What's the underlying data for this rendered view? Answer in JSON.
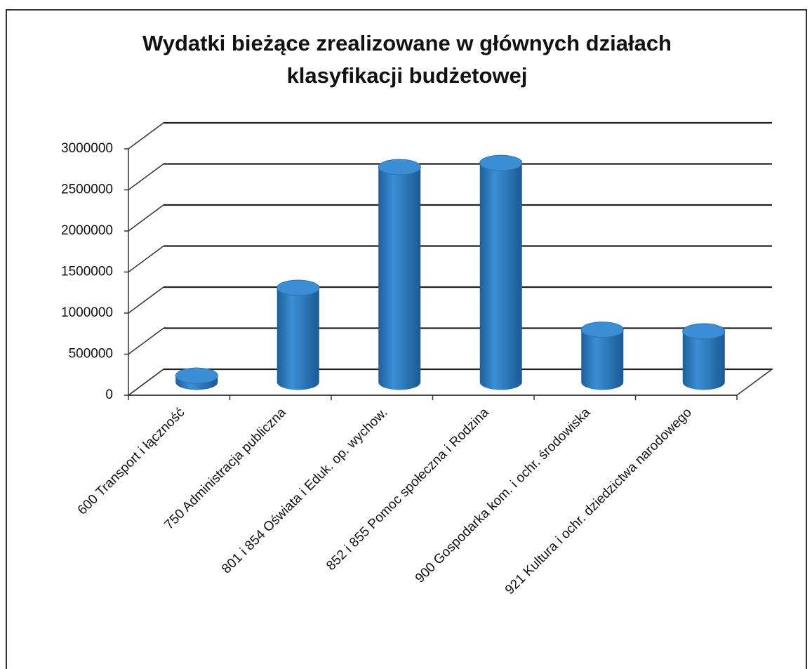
{
  "chart_data": {
    "type": "bar3d",
    "title": [
      "Wydatki bieżące zrealizowane w głównych działach",
      "klasyfikacji budżetowej"
    ],
    "categories": [
      "600 Transport i łączność",
      "750 Administracja publiczna",
      "801 i 854 Oświata i Eduk. op. wychow.",
      "852 i 855 Pomoc społeczna i Rodzina",
      "900 Gospodarka kom. i ochr. środowiska",
      "921 Kultura i ochr. dziedzictwa narodowego"
    ],
    "values": [
      80000,
      1150000,
      2620000,
      2670000,
      640000,
      620000
    ],
    "color": "#2b7cc0",
    "ylim": [
      0,
      3000000
    ],
    "yticks": [
      0,
      500000,
      1000000,
      1500000,
      2000000,
      2500000,
      3000000
    ],
    "grid": true
  }
}
